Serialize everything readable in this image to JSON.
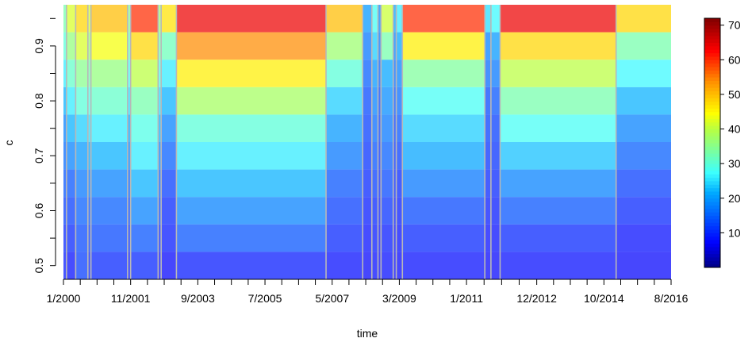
{
  "chart_data": {
    "type": "heatmap",
    "xlabel": "time",
    "ylabel": "c",
    "x_tick_labels": [
      "1/2000",
      "11/2001",
      "9/2003",
      "7/2005",
      "5/2007",
      "3/2009",
      "1/2011",
      "12/2012",
      "10/2014",
      "8/2016"
    ],
    "x_range": [
      "1/2000",
      "8/2016"
    ],
    "y_ticks": [
      0.5,
      0.6,
      0.7,
      0.8,
      0.9
    ],
    "y_range": [
      0.475,
      0.975
    ],
    "c_values": [
      0.5,
      0.55,
      0.6,
      0.65,
      0.7,
      0.75,
      0.8,
      0.85,
      0.9,
      0.95
    ],
    "colorbar": {
      "min": 0,
      "max": 72,
      "ticks": [
        10,
        20,
        30,
        40,
        50,
        60,
        70
      ]
    },
    "segments": [
      {
        "start": "1/2000",
        "end": "2/2000",
        "values": [
          9,
          10,
          12,
          14,
          16,
          18,
          22,
          26,
          30,
          33
        ]
      },
      {
        "start": "2/2000",
        "end": "5/2000",
        "values": [
          8,
          10,
          12,
          14,
          18,
          22,
          26,
          31,
          36,
          42
        ]
      },
      {
        "start": "5/2000",
        "end": "9/2000",
        "values": [
          12,
          13,
          15,
          17,
          20,
          24,
          30,
          35,
          42,
          48
        ]
      },
      {
        "start": "9/2000",
        "end": "10/2000",
        "values": [
          10,
          12,
          14,
          17,
          21,
          25,
          29,
          33,
          37,
          42
        ]
      },
      {
        "start": "10/2000",
        "end": "10/2001",
        "values": [
          10,
          13,
          15,
          18,
          22,
          26,
          31,
          36,
          44,
          50
        ]
      },
      {
        "start": "10/2001",
        "end": "11/2001",
        "values": [
          9,
          11,
          13,
          15,
          18,
          21,
          25,
          28,
          32,
          35
        ]
      },
      {
        "start": "11/2001",
        "end": "8/2002",
        "values": [
          10,
          14,
          18,
          22,
          26,
          29,
          33,
          40,
          48,
          60
        ]
      },
      {
        "start": "8/2002",
        "end": "9/2002",
        "values": [
          8,
          10,
          13,
          15,
          18,
          22,
          25,
          29,
          33,
          37
        ]
      },
      {
        "start": "9/2002",
        "end": "2/2003",
        "values": [
          7,
          9,
          10,
          12,
          15,
          18,
          22,
          26,
          32,
          47
        ]
      },
      {
        "start": "2/2003",
        "end": "3/2007",
        "values": [
          9,
          14,
          18,
          22,
          26,
          30,
          38,
          46,
          54,
          64
        ]
      },
      {
        "start": "3/2007",
        "end": "3/2008",
        "values": [
          8,
          10,
          12,
          14,
          17,
          20,
          24,
          30,
          37,
          50
        ]
      },
      {
        "start": "3/2008",
        "end": "6/2008",
        "values": [
          7,
          8,
          9,
          10,
          11,
          12,
          13,
          15,
          17,
          20
        ]
      },
      {
        "start": "6/2008",
        "end": "8/2008",
        "values": [
          8,
          9,
          10,
          12,
          14,
          16,
          18,
          20,
          24,
          28
        ]
      },
      {
        "start": "8/2008",
        "end": "9/2008",
        "values": [
          7,
          8,
          9,
          10,
          11,
          12,
          13,
          15,
          17,
          19
        ]
      },
      {
        "start": "9/2008",
        "end": "1/2009",
        "values": [
          8,
          9,
          11,
          13,
          15,
          17,
          19,
          21,
          33,
          41
        ]
      },
      {
        "start": "1/2009",
        "end": "2/2009",
        "values": [
          7,
          8,
          9,
          10,
          11,
          12,
          14,
          16,
          18,
          21
        ]
      },
      {
        "start": "2/2009",
        "end": "4/2009",
        "values": [
          7,
          8,
          9,
          10,
          12,
          14,
          16,
          18,
          21,
          26
        ]
      },
      {
        "start": "4/2009",
        "end": "7/2011",
        "values": [
          8,
          10,
          13,
          17,
          21,
          24,
          28,
          34,
          46,
          60
        ]
      },
      {
        "start": "7/2011",
        "end": "9/2011",
        "values": [
          7,
          8,
          9,
          10,
          11,
          12,
          13,
          16,
          18,
          25
        ]
      },
      {
        "start": "9/2011",
        "end": "12/2011",
        "values": [
          7,
          8,
          9,
          10,
          11,
          12,
          14,
          17,
          20,
          27
        ]
      },
      {
        "start": "12/2011",
        "end": "2/2015",
        "values": [
          8,
          10,
          14,
          18,
          23,
          28,
          33,
          40,
          48,
          64
        ]
      },
      {
        "start": "2/2015",
        "end": "8/2016",
        "values": [
          7,
          8,
          10,
          12,
          15,
          18,
          22,
          27,
          33,
          48
        ]
      }
    ]
  }
}
